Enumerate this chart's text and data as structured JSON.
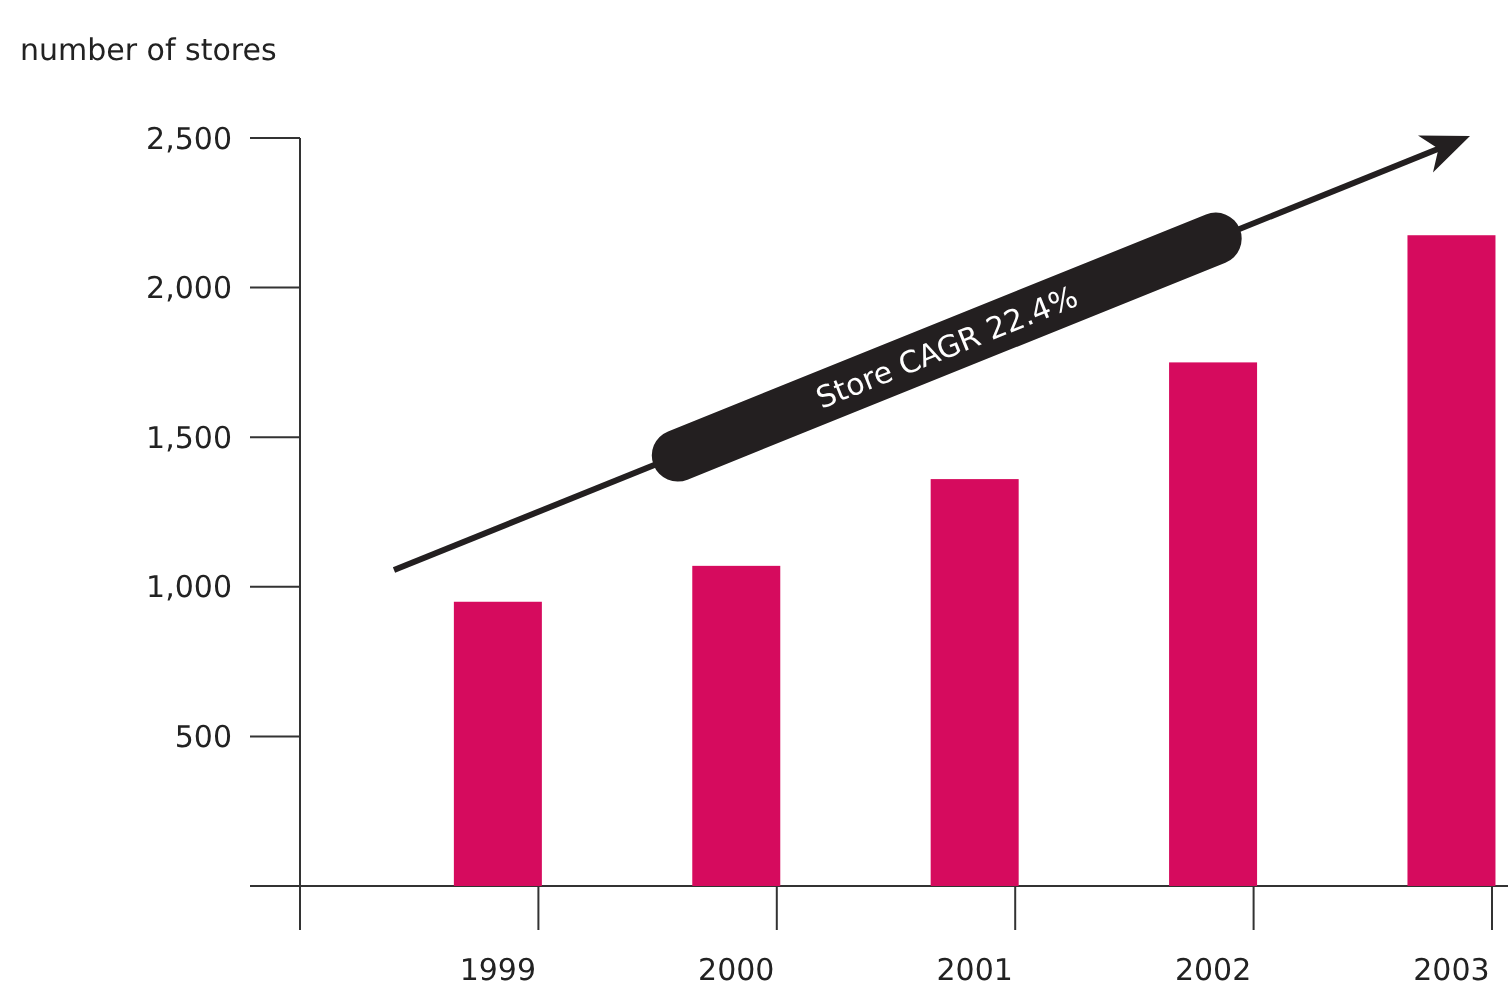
{
  "chart_data": {
    "type": "bar",
    "ylabel": "number of stores",
    "categories": [
      "1999",
      "2000",
      "2001",
      "2002",
      "2003"
    ],
    "values": [
      950,
      1070,
      1360,
      1750,
      2175
    ],
    "color": "#d60b5e",
    "ylim": [
      0,
      2500
    ],
    "yticks": [
      {
        "value": 0,
        "label": null
      },
      {
        "value": 500,
        "label": "500"
      },
      {
        "value": 1000,
        "label": "1,000"
      },
      {
        "value": 1500,
        "label": "1,500"
      },
      {
        "value": 2000,
        "label": "2,000"
      },
      {
        "value": 2500,
        "label": "2,500"
      }
    ],
    "grid": false,
    "annotations": [
      "Store CAGR 22.4%"
    ]
  }
}
